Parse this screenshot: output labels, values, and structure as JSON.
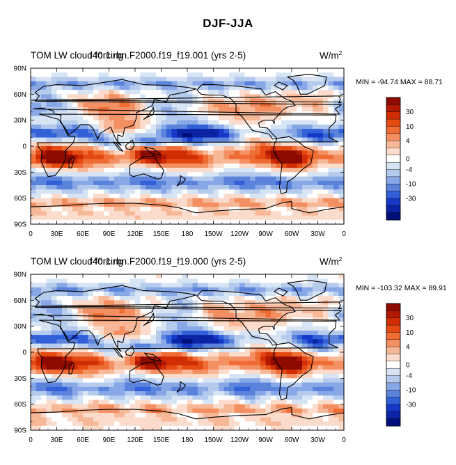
{
  "page": {
    "title": "DJF-JJA"
  },
  "panels": [
    {
      "title": "TOM LW cloud forcing",
      "case": "f40.1.rbn.F2000.f19_f19.001 (yrs 2-5)",
      "units_base": "W/m",
      "units_exp": "2",
      "minmax": "MIN = -94.74 MAX =  88.71"
    },
    {
      "title": "TOM LW cloud forcing",
      "case": "f40.1.rbn.F2000.f19_f19.000 (yrs 2-5)",
      "units_base": "W/m",
      "units_exp": "2",
      "minmax": "MIN = -103.32 MAX =  89.91"
    }
  ],
  "chart_data": [
    {
      "type": "heatmap",
      "title": "TOM LW cloud forcing",
      "subtitle": "f40.1.rbn.F2000.f19_f19.001 (yrs 2-5)",
      "units": "W/m2",
      "min": -94.74,
      "max": 88.71,
      "xlim": [
        0,
        360
      ],
      "ylim": [
        -90,
        90
      ],
      "x_ticks": [
        "0",
        "30E",
        "60E",
        "90E",
        "120E",
        "150E",
        "180",
        "150W",
        "120W",
        "90W",
        "60W",
        "30W",
        "0"
      ],
      "y_ticks": [
        "90N",
        "60N",
        "30N",
        "0",
        "30S",
        "60S",
        "90S"
      ],
      "colorbar_labels": [
        "30",
        "10",
        "4",
        "0",
        "-4",
        "-10",
        "-30"
      ],
      "colorbar_colors": [
        "#8c0a00",
        "#b01800",
        "#d02d05",
        "#e44a12",
        "#f06c35",
        "#f48f62",
        "#f7b898",
        "#fbdccc",
        "#ffffff",
        "#d7e4f4",
        "#b5cbee",
        "#88a7e6",
        "#5b83dc",
        "#3160d8",
        "#1638c8",
        "#0a24a5",
        "#00107a"
      ]
    },
    {
      "type": "heatmap",
      "title": "TOM LW cloud forcing",
      "subtitle": "f40.1.rbn.F2000.f19_f19.000 (yrs 2-5)",
      "units": "W/m2",
      "min": -103.32,
      "max": 89.91,
      "xlim": [
        0,
        360
      ],
      "ylim": [
        -90,
        90
      ],
      "x_ticks": [
        "0",
        "30E",
        "60E",
        "90E",
        "120E",
        "150E",
        "180",
        "150W",
        "120W",
        "90W",
        "60W",
        "30W",
        "0"
      ],
      "y_ticks": [
        "90N",
        "60N",
        "30N",
        "0",
        "30S",
        "60S",
        "90S"
      ],
      "colorbar_labels": [
        "30",
        "10",
        "4",
        "0",
        "-4",
        "-10",
        "-30"
      ],
      "colorbar_colors": [
        "#8c0a00",
        "#b01800",
        "#d02d05",
        "#e44a12",
        "#f06c35",
        "#f48f62",
        "#f7b898",
        "#fbdccc",
        "#ffffff",
        "#d7e4f4",
        "#b5cbee",
        "#88a7e6",
        "#5b83dc",
        "#3160d8",
        "#1638c8",
        "#0a24a5",
        "#00107a"
      ]
    }
  ]
}
